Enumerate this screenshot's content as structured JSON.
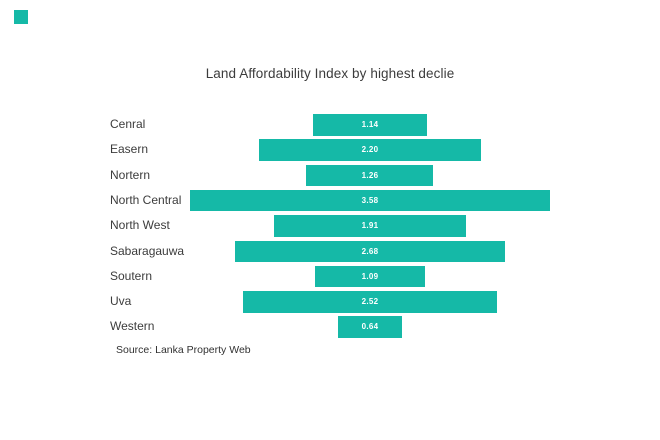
{
  "page": {
    "background_color": "#ffffff"
  },
  "brand": {
    "corner_square_color": "#15b9a7"
  },
  "chart_data": {
    "type": "bar",
    "orientation": "horizontal-centered",
    "title": "Land Affordability Index by highest declie",
    "categories": [
      "Cenral",
      "Easern",
      "Nortern",
      "North Central",
      "North West",
      "Sabaragauwa",
      "Soutern",
      "Uva",
      "Western"
    ],
    "values": [
      1.14,
      2.2,
      1.26,
      3.58,
      1.91,
      2.68,
      1.09,
      2.52,
      0.64
    ],
    "value_labels": [
      "1.14",
      "2.20",
      "1.26",
      "3.58",
      "1.91",
      "2.68",
      "1.09",
      "2.52",
      "0.64"
    ],
    "bar_color": "#15b9a7",
    "value_label_color": "#ffffff",
    "category_label_color": "#3c3c3c",
    "xlabel": "",
    "ylabel": "",
    "grid": false,
    "axes_visible": false,
    "legend": false
  },
  "source": {
    "label": "Source: Lanka Property Web"
  }
}
